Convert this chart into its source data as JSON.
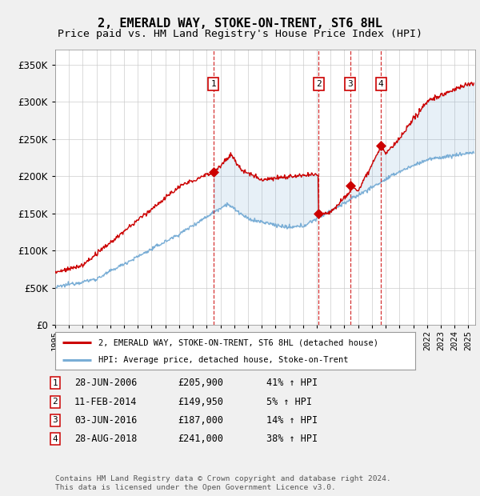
{
  "title": "2, EMERALD WAY, STOKE-ON-TRENT, ST6 8HL",
  "subtitle": "Price paid vs. HM Land Registry's House Price Index (HPI)",
  "ylim": [
    0,
    370000
  ],
  "yticks": [
    0,
    50000,
    100000,
    150000,
    200000,
    250000,
    300000,
    350000
  ],
  "xlim_start": 1995.0,
  "xlim_end": 2025.5,
  "background_color": "#f0f0f0",
  "plot_bg_color": "#ffffff",
  "hpi_color": "#7aaed6",
  "price_color": "#cc0000",
  "transactions": [
    {
      "label": "1",
      "date_str": "28-JUN-2006",
      "year": 2006.49,
      "price": 205900,
      "pct": "41%",
      "direction": "↑"
    },
    {
      "label": "2",
      "date_str": "11-FEB-2014",
      "year": 2014.12,
      "price": 149950,
      "pct": "5%",
      "direction": "↑"
    },
    {
      "label": "3",
      "date_str": "03-JUN-2016",
      "year": 2016.42,
      "price": 187000,
      "pct": "14%",
      "direction": "↑"
    },
    {
      "label": "4",
      "date_str": "28-AUG-2018",
      "year": 2018.66,
      "price": 241000,
      "pct": "38%",
      "direction": "↑"
    }
  ],
  "legend_label_price": "2, EMERALD WAY, STOKE-ON-TRENT, ST6 8HL (detached house)",
  "legend_label_hpi": "HPI: Average price, detached house, Stoke-on-Trent",
  "footer": "Contains HM Land Registry data © Crown copyright and database right 2024.\nThis data is licensed under the Open Government Licence v3.0."
}
